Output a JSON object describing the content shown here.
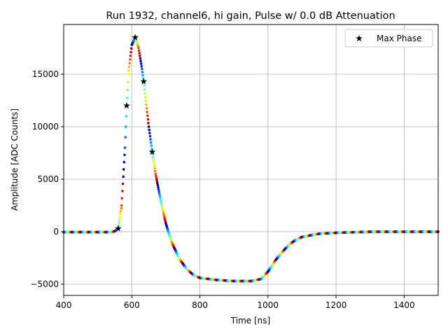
{
  "chart_data": {
    "type": "scatter",
    "title": "Run 1932, channel6, hi gain, Pulse w/ 0.0 dB Attenuation",
    "xlabel": "Time [ns]",
    "ylabel": "Amplitude [ADC Counts]",
    "xlim": [
      400,
      1500
    ],
    "ylim": [
      -6067,
      19733
    ],
    "xticks": [
      400,
      600,
      800,
      1000,
      1200,
      1400
    ],
    "xtick_labels": [
      "400",
      "600",
      "800",
      "1000",
      "1200",
      "1400"
    ],
    "yticks": [
      -5000,
      0,
      5000,
      10000,
      15000
    ],
    "ytick_labels": [
      "−5000",
      "0",
      "5000",
      "10000",
      "15000"
    ],
    "grid": true,
    "legend": {
      "placement": "top-right",
      "entries": [
        "Max Phase"
      ]
    },
    "colormap": "jet",
    "phase_period_ns": 25,
    "waveform": {
      "time": [
        400,
        540,
        550,
        560,
        570,
        580,
        585,
        590,
        600,
        610,
        620,
        630,
        635,
        640,
        650,
        660,
        670,
        680,
        690,
        700,
        710,
        720,
        740,
        760,
        780,
        800,
        850,
        900,
        950,
        980,
        1000,
        1020,
        1040,
        1060,
        1080,
        1100,
        1150,
        1200,
        1300,
        1500
      ],
      "amplitude": [
        -40,
        -40,
        50,
        300,
        2500,
        8000,
        12000,
        15000,
        17800,
        18500,
        17500,
        15500,
        14300,
        12800,
        10000,
        7600,
        5500,
        3800,
        2200,
        800,
        -300,
        -1200,
        -2600,
        -3500,
        -4100,
        -4400,
        -4600,
        -4700,
        -4700,
        -4500,
        -3800,
        -2800,
        -2000,
        -1300,
        -800,
        -500,
        -200,
        -100,
        0,
        0
      ]
    },
    "max_phase": {
      "name": "Max Phase",
      "time": [
        560,
        585,
        610,
        635,
        660
      ],
      "amplitude": [
        300,
        12000,
        18500,
        14300,
        7600
      ]
    }
  }
}
